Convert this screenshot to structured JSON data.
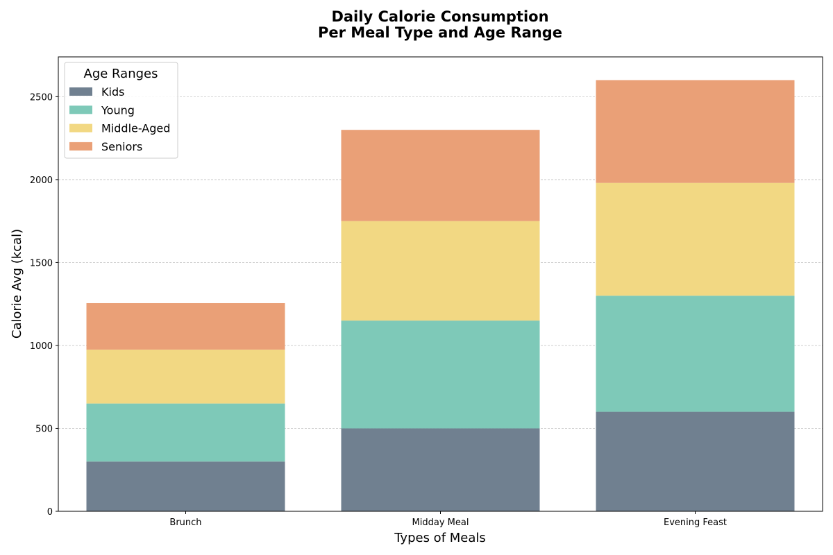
{
  "chart_data": {
    "type": "bar",
    "stacked": true,
    "title": "Daily Calorie Consumption",
    "subtitle": "Per Meal Type and Age Range",
    "xlabel": "Types of Meals",
    "ylabel": "Calorie Avg (kcal)",
    "categories": [
      "Brunch",
      "Midday Meal",
      "Evening Feast"
    ],
    "series": [
      {
        "name": "Kids",
        "values": [
          300,
          500,
          600
        ],
        "color": "#708090"
      },
      {
        "name": "Young",
        "values": [
          350,
          650,
          700
        ],
        "color": "#7ec9b8"
      },
      {
        "name": "Middle-Aged",
        "values": [
          325,
          600,
          680
        ],
        "color": "#f2d883"
      },
      {
        "name": "Seniors",
        "values": [
          280,
          550,
          620
        ],
        "color": "#eaa077"
      }
    ],
    "ylim": [
      0,
      2740
    ],
    "yticks": [
      0,
      500,
      1000,
      1500,
      2000,
      2500
    ],
    "grid": "horizontal dashed",
    "legend": {
      "title": "Age Ranges",
      "placement": "top-left"
    }
  }
}
